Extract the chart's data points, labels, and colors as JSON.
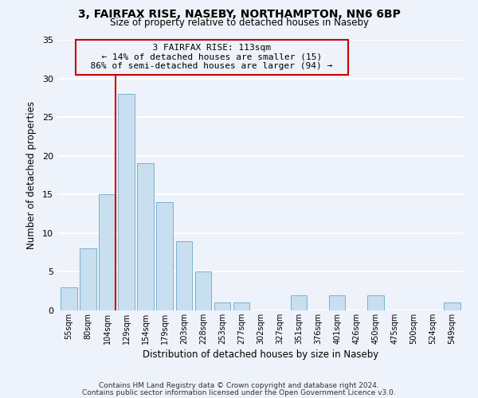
{
  "title1": "3, FAIRFAX RISE, NASEBY, NORTHAMPTON, NN6 6BP",
  "title2": "Size of property relative to detached houses in Naseby",
  "xlabel": "Distribution of detached houses by size in Naseby",
  "ylabel": "Number of detached properties",
  "bar_color": "#c8dff0",
  "bar_edge_color": "#7ab0cc",
  "background_color": "#eef2fa",
  "grid_color": "white",
  "categories": [
    "55sqm",
    "80sqm",
    "104sqm",
    "129sqm",
    "154sqm",
    "179sqm",
    "203sqm",
    "228sqm",
    "253sqm",
    "277sqm",
    "302sqm",
    "327sqm",
    "351sqm",
    "376sqm",
    "401sqm",
    "426sqm",
    "450sqm",
    "475sqm",
    "500sqm",
    "524sqm",
    "549sqm"
  ],
  "values": [
    3,
    8,
    15,
    28,
    19,
    14,
    9,
    5,
    1,
    1,
    0,
    0,
    2,
    0,
    2,
    0,
    2,
    0,
    0,
    0,
    1
  ],
  "ylim": [
    0,
    35
  ],
  "yticks": [
    0,
    5,
    10,
    15,
    20,
    25,
    30,
    35
  ],
  "vline_index": 2,
  "vline_color": "#cc0000",
  "annotation_line1": "3 FAIRFAX RISE: 113sqm",
  "annotation_line2": "← 14% of detached houses are smaller (15)",
  "annotation_line3": "86% of semi-detached houses are larger (94) →",
  "annotation_box_edge": "#cc0000",
  "footer1": "Contains HM Land Registry data © Crown copyright and database right 2024.",
  "footer2": "Contains public sector information licensed under the Open Government Licence v3.0."
}
